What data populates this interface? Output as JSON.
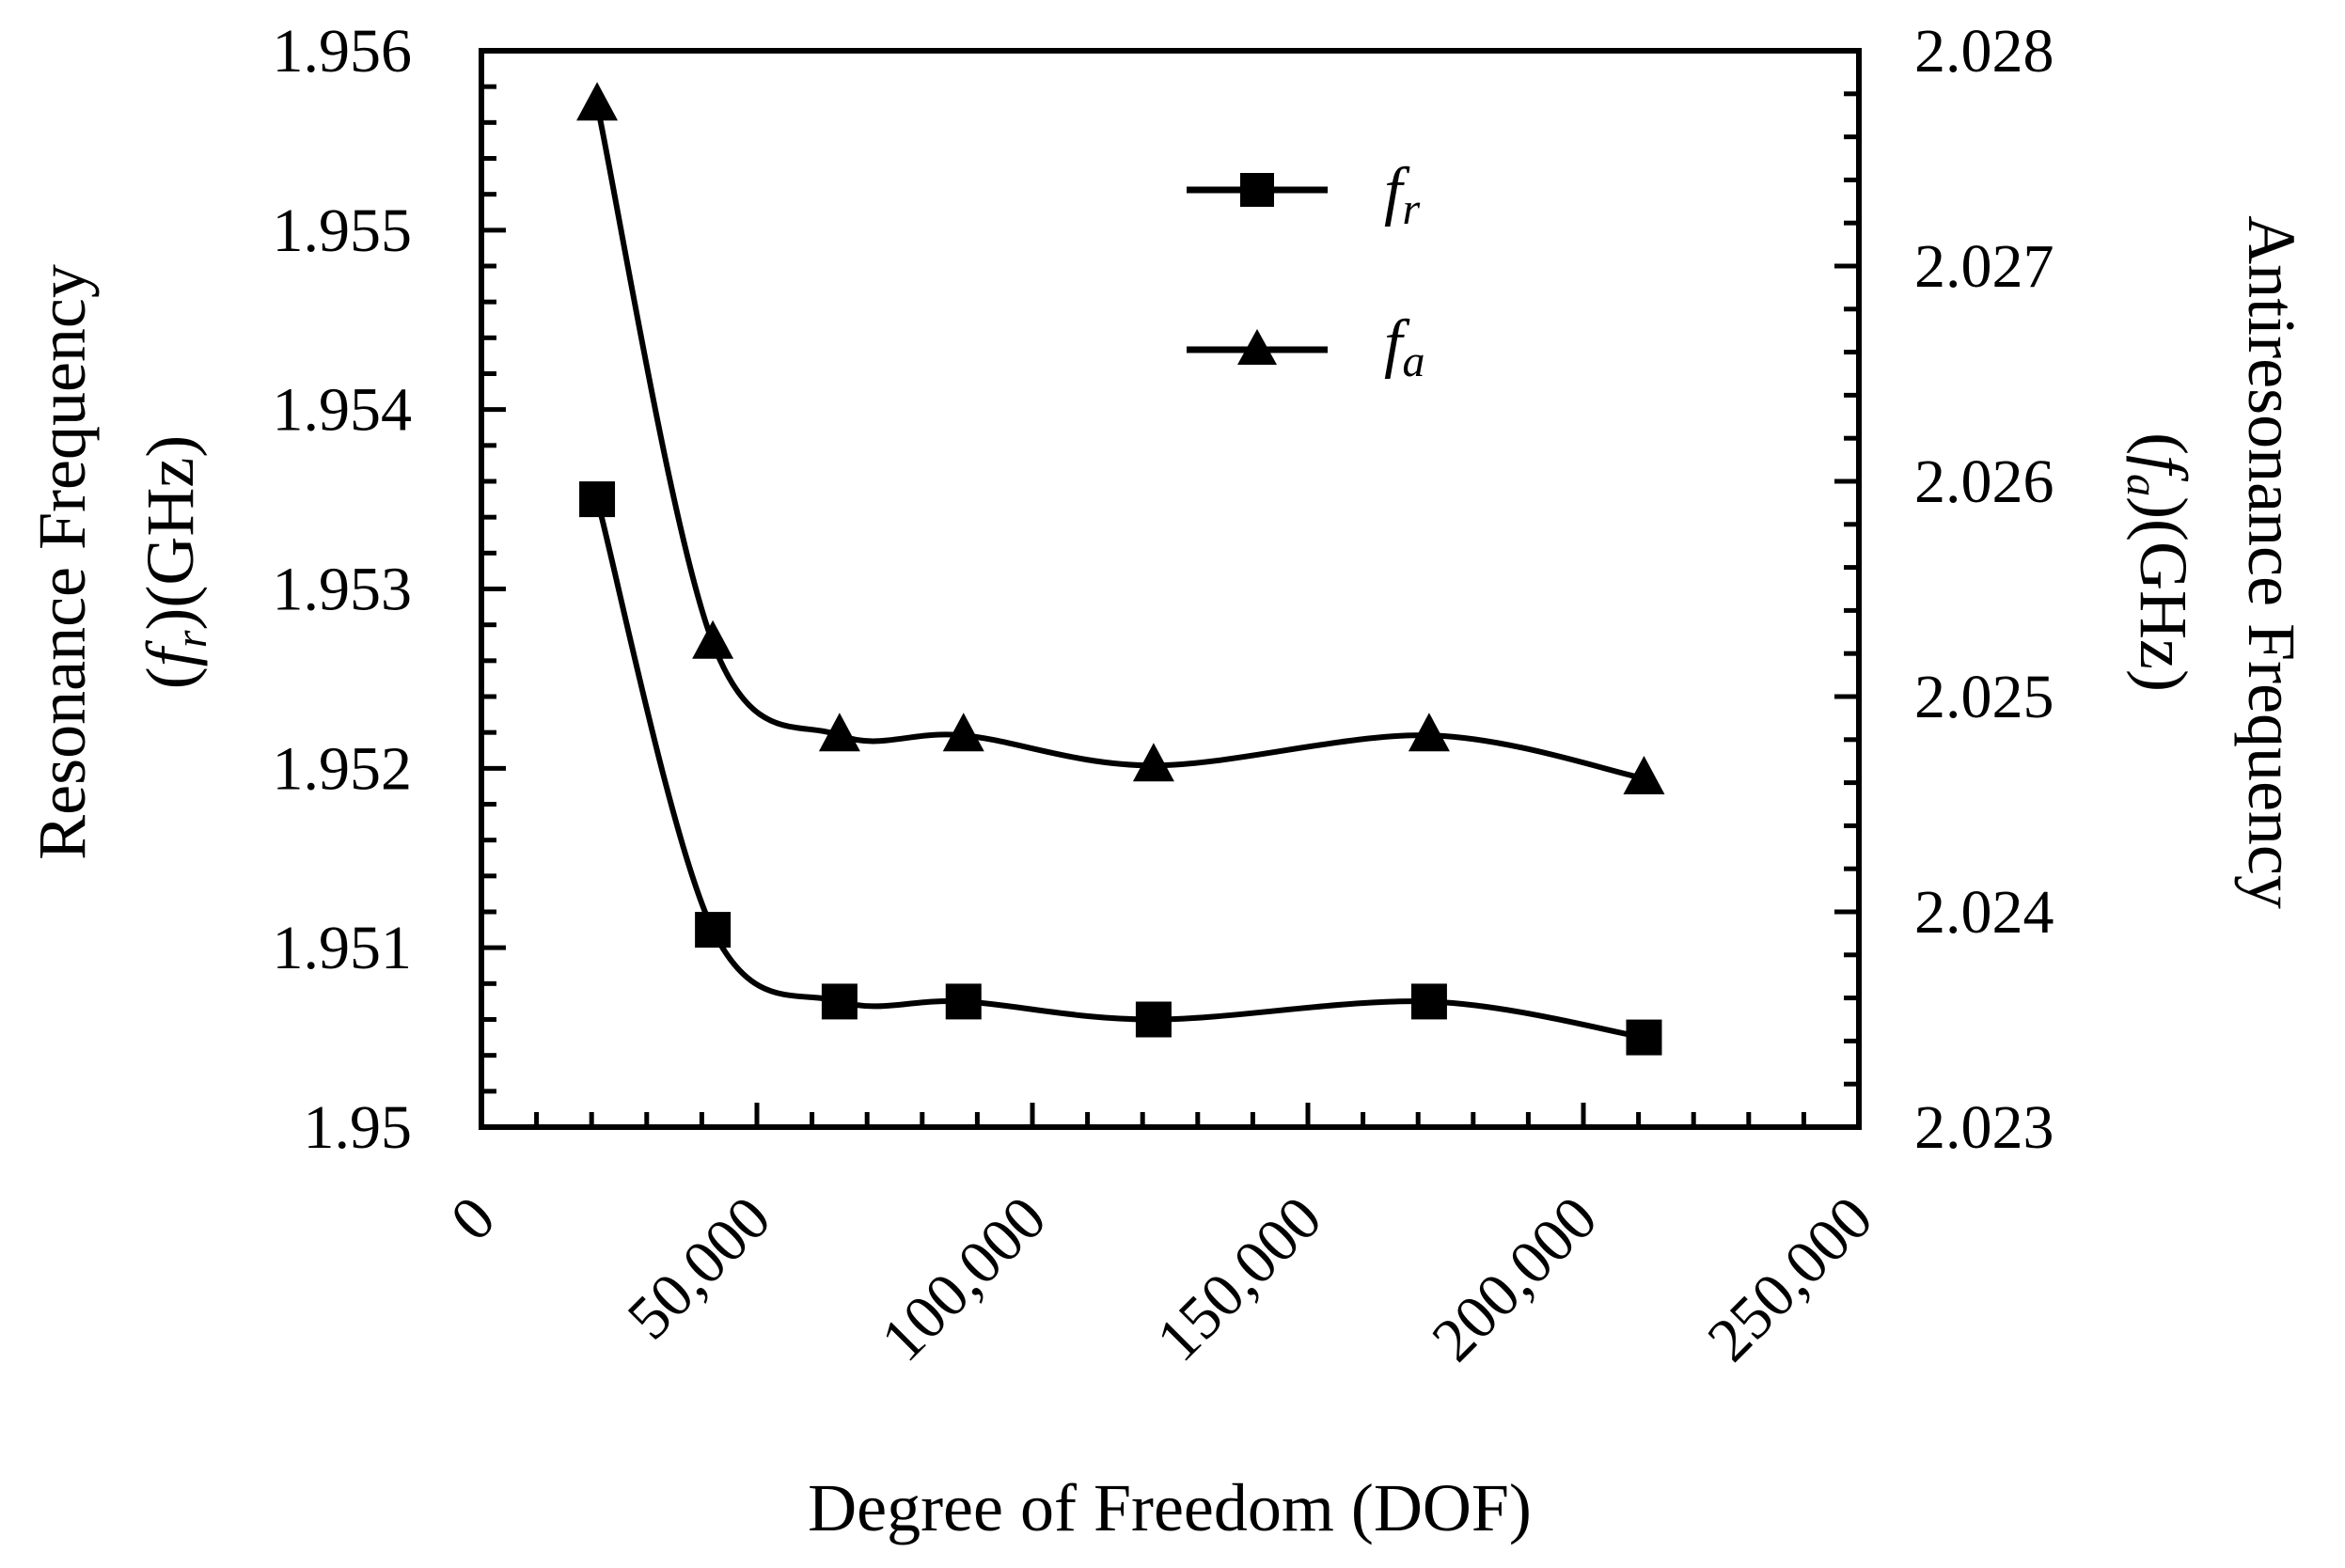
{
  "chart_data": {
    "type": "line",
    "x": [
      21000,
      42000,
      65000,
      87500,
      122000,
      172000,
      211000
    ],
    "series": [
      {
        "name": "fr",
        "axis": "left",
        "marker": "square",
        "values": [
          1.9535,
          1.9511,
          1.9507,
          1.9507,
          1.9506,
          1.9507,
          1.9505
        ]
      },
      {
        "name": "fa",
        "axis": "right",
        "marker": "triangle",
        "values": [
          2.02775,
          2.02525,
          2.02482,
          2.02482,
          2.02468,
          2.02482,
          2.02462
        ]
      }
    ],
    "xlabel": "Degree of Freedom (DOF)",
    "ylabel_left": {
      "line1": "Resonance Frequency",
      "pre": "(",
      "sym": "f",
      "sub": "r",
      "post": ")(GHz)"
    },
    "ylabel_right": {
      "line1": "Antiresonance Frequency",
      "pre": "(",
      "sym": "f",
      "sub": "a",
      "post": ")(GHz)"
    },
    "xlim": [
      0,
      250000
    ],
    "ylim_left": [
      1.95,
      1.956
    ],
    "ylim_right": [
      2.023,
      2.028
    ],
    "xticks": [
      0,
      50000,
      100000,
      150000,
      200000,
      250000
    ],
    "xtick_labels": [
      "0",
      "50,000",
      "100,000",
      "150,000",
      "200,000",
      "250,000"
    ],
    "yticks_left": [
      1.95,
      1.951,
      1.952,
      1.953,
      1.954,
      1.955,
      1.956
    ],
    "ytick_labels_left": [
      "1.95",
      "1.951",
      "1.952",
      "1.953",
      "1.954",
      "1.955",
      "1.956"
    ],
    "yticks_right": [
      2.023,
      2.024,
      2.025,
      2.026,
      2.027,
      2.028
    ],
    "ytick_labels_right": [
      "2.023",
      "2.024",
      "2.025",
      "2.026",
      "2.027",
      "2.028"
    ],
    "legend": {
      "position": "top-right",
      "entries": [
        {
          "sym": "f",
          "sub": "r",
          "marker": "square"
        },
        {
          "sym": "f",
          "sub": "a",
          "marker": "triangle"
        }
      ]
    },
    "grid": false,
    "color": "#000000"
  }
}
